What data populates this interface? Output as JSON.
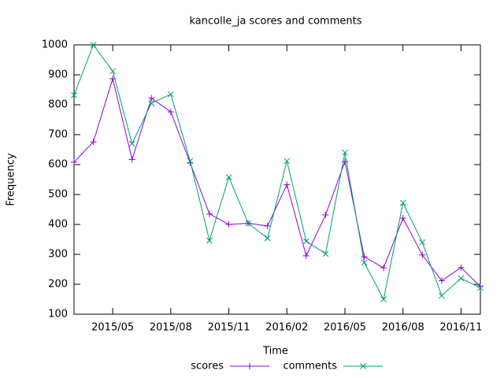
{
  "chart_data": {
    "type": "line",
    "title": "kancolle_ja scores and comments",
    "x_label": "Time",
    "y_label": "Frequency",
    "categories": [
      null,
      null,
      "2015/05",
      null,
      null,
      "2015/08",
      null,
      null,
      "2015/11",
      null,
      null,
      "2016/02",
      null,
      null,
      "2016/05",
      null,
      null,
      "2016/08",
      null,
      null,
      "2016/11",
      null
    ],
    "series": [
      {
        "name": "scores",
        "color": "#9400d3",
        "marker": "plus",
        "values": [
          608,
          676,
          887,
          617,
          822,
          776,
          606,
          435,
          400,
          404,
          395,
          533,
          295,
          432,
          610,
          292,
          255,
          421,
          298,
          212,
          256,
          192
        ]
      },
      {
        "name": "comments",
        "color": "#009e73",
        "marker": "cross",
        "values": [
          832,
          1000,
          912,
          670,
          805,
          835,
          612,
          346,
          558,
          404,
          354,
          612,
          344,
          302,
          640,
          272,
          150,
          472,
          340,
          162,
          220,
          188
        ]
      }
    ],
    "ylim": [
      100,
      1000
    ],
    "yticks": [
      100,
      200,
      300,
      400,
      500,
      600,
      700,
      800,
      900,
      1000
    ],
    "grid": false,
    "legend": "bottom"
  }
}
